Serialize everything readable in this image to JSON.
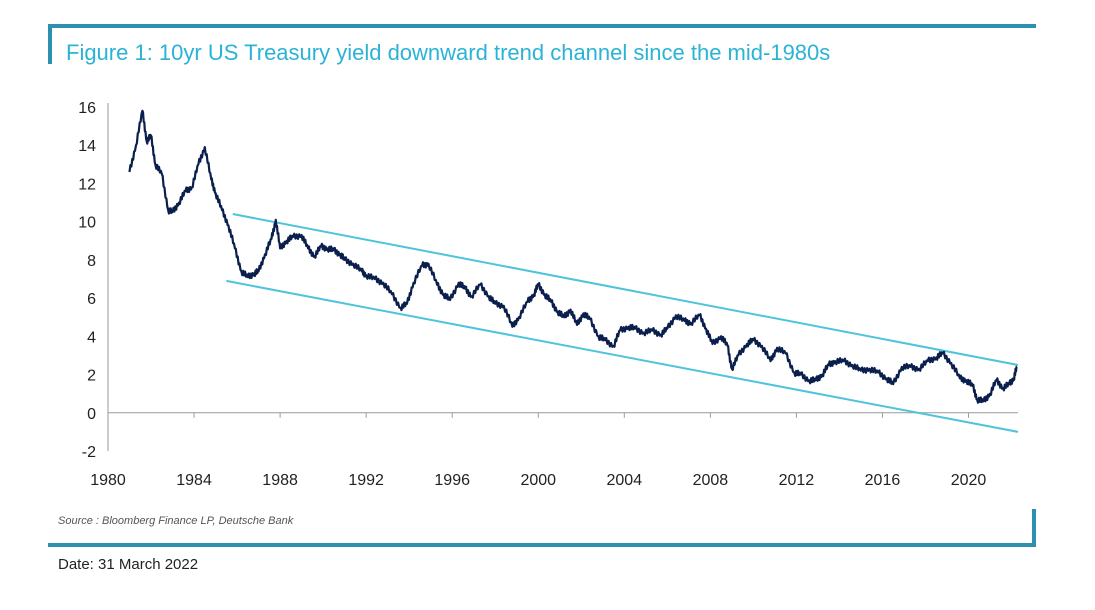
{
  "title": "Figure 1: 10yr US Treasury yield downward trend channel since the mid-1980s",
  "source": "Source : Bloomberg Finance LP, Deutsche Bank",
  "date": "Date: 31 March 2022",
  "colors": {
    "accent": "#2e8fb0",
    "title": "#2bb3d6",
    "series": "#0b1f4d",
    "channel": "#4fc3dc"
  },
  "chart_data": {
    "type": "line",
    "title": "Figure 1: 10yr US Treasury yield downward trend channel since the mid-1980s",
    "xlabel": "",
    "ylabel": "",
    "xlim": [
      1980,
      2022.3
    ],
    "ylim": [
      -2,
      16
    ],
    "x_ticks": [
      1980,
      1984,
      1988,
      1992,
      1996,
      2000,
      2004,
      2008,
      2012,
      2016,
      2020
    ],
    "y_ticks": [
      16,
      14,
      12,
      10,
      8,
      6,
      4,
      2,
      0,
      -2
    ],
    "grid": false,
    "legend": "none",
    "series": [
      {
        "x": [
          1981.0,
          1981.3,
          1981.6,
          1981.8,
          1982.0,
          1982.2,
          1982.5,
          1982.8,
          1983.0,
          1983.3,
          1983.6,
          1983.9,
          1984.2,
          1984.5,
          1984.8,
          1985.0,
          1985.3,
          1985.6,
          1985.9,
          1986.2,
          1986.5,
          1986.8,
          1987.0,
          1987.3,
          1987.6,
          1987.8,
          1988.0,
          1988.3,
          1988.6,
          1989.0,
          1989.3,
          1989.6,
          1989.9,
          1990.2,
          1990.5,
          1990.8,
          1991.0,
          1991.4,
          1991.8,
          1992.0,
          1992.4,
          1992.8,
          1993.2,
          1993.6,
          1993.9,
          1994.2,
          1994.6,
          1994.9,
          1995.3,
          1995.6,
          1995.9,
          1996.3,
          1996.6,
          1996.9,
          1997.3,
          1997.7,
          1998.0,
          1998.4,
          1998.8,
          1999.1,
          1999.5,
          1999.8,
          2000.0,
          2000.3,
          2000.6,
          2000.9,
          2001.2,
          2001.5,
          2001.8,
          2002.1,
          2002.4,
          2002.8,
          2003.1,
          2003.5,
          2003.8,
          2004.2,
          2004.5,
          2004.9,
          2005.3,
          2005.7,
          2006.0,
          2006.4,
          2006.8,
          2007.1,
          2007.5,
          2007.8,
          2008.1,
          2008.5,
          2008.8,
          2009.0,
          2009.3,
          2009.7,
          2010.0,
          2010.4,
          2010.8,
          2011.1,
          2011.5,
          2011.9,
          2012.2,
          2012.6,
          2012.9,
          2013.2,
          2013.5,
          2013.8,
          2014.2,
          2014.6,
          2015.0,
          2015.4,
          2015.8,
          2016.2,
          2016.5,
          2016.9,
          2017.3,
          2017.7,
          2018.1,
          2018.5,
          2018.8,
          2019.2,
          2019.6,
          2019.9,
          2020.2,
          2020.4,
          2020.7,
          2021.0,
          2021.3,
          2021.6,
          2021.9,
          2022.1,
          2022.25
        ],
        "y": [
          12.6,
          14.0,
          15.8,
          14.2,
          14.5,
          13.0,
          12.5,
          10.6,
          10.5,
          11.0,
          11.6,
          11.8,
          13.0,
          13.9,
          12.2,
          11.5,
          10.6,
          9.8,
          8.6,
          7.4,
          7.1,
          7.3,
          7.4,
          8.3,
          9.1,
          10.1,
          8.6,
          9.0,
          9.2,
          9.3,
          8.6,
          8.2,
          8.7,
          8.6,
          8.5,
          8.3,
          8.0,
          7.8,
          7.4,
          7.2,
          7.0,
          6.8,
          6.2,
          5.5,
          5.7,
          6.8,
          7.7,
          7.8,
          6.7,
          6.2,
          5.9,
          6.8,
          6.5,
          6.1,
          6.7,
          6.1,
          5.7,
          5.6,
          4.5,
          5.0,
          5.8,
          6.2,
          6.7,
          6.2,
          5.8,
          5.3,
          5.0,
          5.4,
          4.6,
          5.2,
          4.9,
          4.0,
          3.8,
          3.5,
          4.3,
          4.5,
          4.4,
          4.2,
          4.3,
          4.1,
          4.4,
          5.1,
          4.8,
          4.7,
          5.1,
          4.4,
          3.6,
          4.0,
          3.5,
          2.3,
          3.0,
          3.6,
          3.8,
          3.5,
          2.7,
          3.4,
          3.1,
          2.1,
          2.0,
          1.7,
          1.7,
          2.0,
          2.5,
          2.7,
          2.7,
          2.5,
          2.2,
          2.3,
          2.1,
          1.8,
          1.5,
          2.4,
          2.4,
          2.3,
          2.7,
          2.9,
          3.1,
          2.6,
          1.8,
          1.7,
          1.4,
          0.7,
          0.6,
          1.0,
          1.7,
          1.3,
          1.5,
          1.8,
          2.4
        ]
      }
    ],
    "channel_lines": [
      {
        "x": [
          1985.8,
          2022.3
        ],
        "y": [
          10.4,
          2.5
        ]
      },
      {
        "x": [
          1985.5,
          2022.3
        ],
        "y": [
          6.9,
          -1.0
        ]
      }
    ]
  }
}
